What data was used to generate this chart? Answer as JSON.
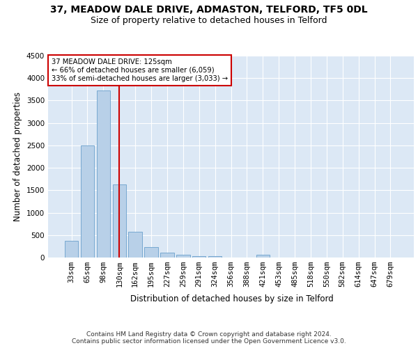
{
  "title": "37, MEADOW DALE DRIVE, ADMASTON, TELFORD, TF5 0DL",
  "subtitle": "Size of property relative to detached houses in Telford",
  "xlabel": "Distribution of detached houses by size in Telford",
  "ylabel": "Number of detached properties",
  "categories": [
    "33sqm",
    "65sqm",
    "98sqm",
    "130sqm",
    "162sqm",
    "195sqm",
    "227sqm",
    "259sqm",
    "291sqm",
    "324sqm",
    "356sqm",
    "388sqm",
    "421sqm",
    "453sqm",
    "485sqm",
    "518sqm",
    "550sqm",
    "582sqm",
    "614sqm",
    "647sqm",
    "679sqm"
  ],
  "values": [
    375,
    2500,
    3720,
    1630,
    580,
    230,
    105,
    60,
    35,
    30,
    0,
    0,
    55,
    0,
    0,
    0,
    0,
    0,
    0,
    0,
    0
  ],
  "bar_color": "#b8d0e8",
  "bar_edge_color": "#6aa0cc",
  "highlight_index": 3,
  "highlight_color": "#cc0000",
  "annotation_text": "37 MEADOW DALE DRIVE: 125sqm\n← 66% of detached houses are smaller (6,059)\n33% of semi-detached houses are larger (3,033) →",
  "annotation_box_color": "#ffffff",
  "annotation_box_edge": "#cc0000",
  "ylim": [
    0,
    4500
  ],
  "yticks": [
    0,
    500,
    1000,
    1500,
    2000,
    2500,
    3000,
    3500,
    4000,
    4500
  ],
  "footer": "Contains HM Land Registry data © Crown copyright and database right 2024.\nContains public sector information licensed under the Open Government Licence v3.0.",
  "title_fontsize": 10,
  "subtitle_fontsize": 9,
  "xlabel_fontsize": 8.5,
  "ylabel_fontsize": 8.5,
  "tick_fontsize": 7.5,
  "footer_fontsize": 6.5,
  "bg_color": "#dce8f5",
  "fig_color": "#ffffff"
}
